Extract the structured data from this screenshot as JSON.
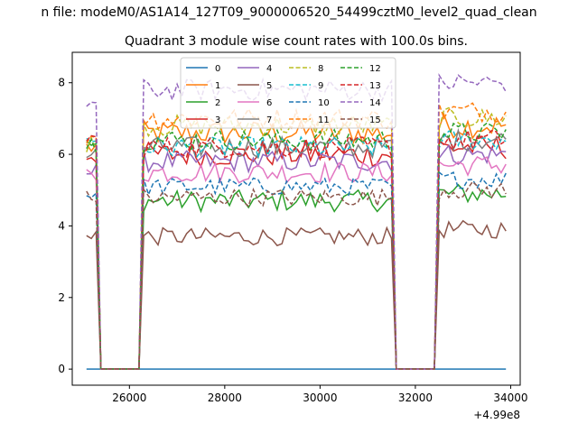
{
  "chart_data": {
    "type": "line",
    "suptitle": "n file: modeM0/AS1A14_127T09_9000006520_54499cztM0_level2_quad_clean",
    "title": "Quadrant 3 module wise count rates with 100.0s bins.",
    "xlabel": "",
    "ylabel": "",
    "x_offset_label": "+4.99e8",
    "xlim": [
      24800,
      34200
    ],
    "ylim": [
      -0.45,
      8.85
    ],
    "xticks": [
      26000,
      28000,
      30000,
      32000,
      34000
    ],
    "xtick_labels": [
      "26000",
      "28000",
      "30000",
      "32000",
      "34000"
    ],
    "yticks": [
      0,
      2,
      4,
      6,
      8
    ],
    "ytick_labels": [
      "0",
      "2",
      "4",
      "6",
      "8"
    ],
    "legend_position": "upper-center",
    "legend_columns": 4,
    "segments": [
      {
        "gap_start_x": 25400,
        "gap_end_x": 26200
      },
      {
        "gap_start_x": 31600,
        "gap_end_x": 32400
      }
    ],
    "x_range": [
      25100,
      33900
    ],
    "series": [
      {
        "name": "0",
        "color": "#1f77b4",
        "dash": "solid",
        "level": 0.0,
        "start": 0.0,
        "noise": 0.0
      },
      {
        "name": "1",
        "color": "#ff7f0e",
        "dash": "solid",
        "level": 6.6,
        "start": 6.2,
        "noise": 0.35
      },
      {
        "name": "2",
        "color": "#2ca02c",
        "dash": "solid",
        "level": 4.7,
        "start": 6.2,
        "noise": 0.3
      },
      {
        "name": "3",
        "color": "#d62728",
        "dash": "solid",
        "level": 6.0,
        "start": 6.0,
        "noise": 0.35
      },
      {
        "name": "4",
        "color": "#9467bd",
        "dash": "solid",
        "level": 5.8,
        "start": 5.5,
        "noise": 0.3
      },
      {
        "name": "5",
        "color": "#8c564b",
        "dash": "solid",
        "level": 3.7,
        "start": 3.8,
        "noise": 0.25
      },
      {
        "name": "6",
        "color": "#e377c2",
        "dash": "solid",
        "level": 5.5,
        "start": 5.4,
        "noise": 0.3
      },
      {
        "name": "7",
        "color": "#7f7f7f",
        "dash": "solid",
        "level": 6.2,
        "start": 6.0,
        "noise": 0.3
      },
      {
        "name": "8",
        "color": "#bcbd22",
        "dash": "dashed",
        "level": 6.8,
        "start": 6.3,
        "noise": 0.3
      },
      {
        "name": "9",
        "color": "#17becf",
        "dash": "dashed",
        "level": 6.2,
        "start": 6.4,
        "noise": 0.3
      },
      {
        "name": "10",
        "color": "#1f77b4",
        "dash": "dashed",
        "level": 5.1,
        "start": 4.9,
        "noise": 0.25
      },
      {
        "name": "11",
        "color": "#ff7f0e",
        "dash": "dashed",
        "level": 7.0,
        "start": 6.5,
        "noise": 0.3
      },
      {
        "name": "12",
        "color": "#2ca02c",
        "dash": "dashed",
        "level": 6.4,
        "start": 6.3,
        "noise": 0.3
      },
      {
        "name": "13",
        "color": "#d62728",
        "dash": "dashed",
        "level": 6.2,
        "start": 6.4,
        "noise": 0.3
      },
      {
        "name": "14",
        "color": "#9467bd",
        "dash": "dashed",
        "level": 7.8,
        "start": 7.4,
        "noise": 0.3
      },
      {
        "name": "15",
        "color": "#8c564b",
        "dash": "dashed",
        "level": 4.8,
        "start": 4.8,
        "noise": 0.25
      }
    ]
  }
}
